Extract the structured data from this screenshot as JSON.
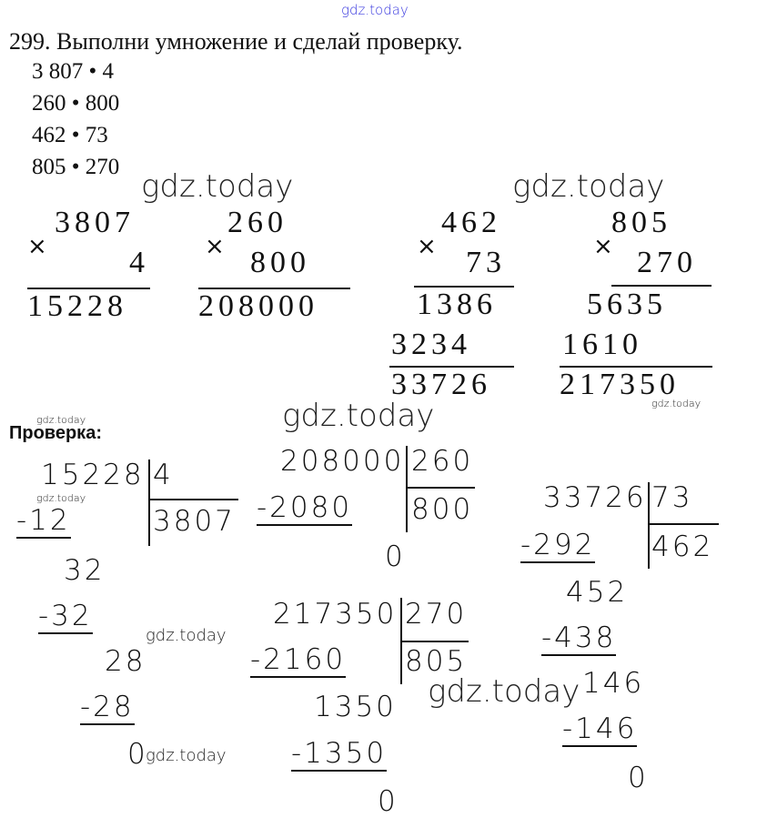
{
  "watermark": "gdz.today",
  "watermark_color_top": "#3a3adf",
  "task": {
    "title": "299. Выполни умножение и сделай проверку.",
    "expressions": [
      "3 807 • 4",
      "260 • 800",
      "462 • 73",
      "805 • 270"
    ]
  },
  "multiplication": [
    {
      "a": "3807",
      "b": "4",
      "result": "15228"
    },
    {
      "a": "260",
      "b": "800",
      "result": "208000"
    },
    {
      "a": "462",
      "b": "73",
      "partials": [
        "1386",
        "3234"
      ],
      "result": "33726"
    },
    {
      "a": "805",
      "b": "270",
      "partials": [
        "5635",
        "1610"
      ],
      "result": "217350"
    }
  ],
  "times_sign": "×",
  "check": {
    "label": "Проверка:",
    "divisions": [
      {
        "dividend": "15228",
        "divisor": "4",
        "quotient": "3807",
        "steps": [
          "-12",
          "32",
          "-32",
          "28",
          "-28",
          "0"
        ]
      },
      {
        "dividend": "208000",
        "divisor": "260",
        "quotient": "800",
        "steps": [
          "-2080",
          "0"
        ]
      },
      {
        "dividend": "217350",
        "divisor": "270",
        "quotient": "805",
        "steps": [
          "-2160",
          "1350",
          "-1350",
          "0"
        ]
      },
      {
        "dividend": "33726",
        "divisor": "73",
        "quotient": "462",
        "steps": [
          "-292",
          "452",
          "-438",
          "146",
          "-146",
          "0"
        ]
      }
    ]
  }
}
